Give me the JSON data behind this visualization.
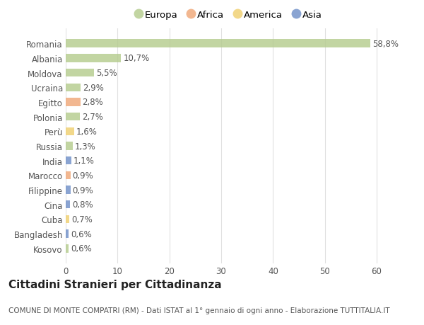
{
  "categories": [
    "Romania",
    "Albania",
    "Moldova",
    "Ucraina",
    "Egitto",
    "Polonia",
    "Perù",
    "Russia",
    "India",
    "Marocco",
    "Filippine",
    "Cina",
    "Cuba",
    "Bangladesh",
    "Kosovo"
  ],
  "values": [
    58.8,
    10.7,
    5.5,
    2.9,
    2.8,
    2.7,
    1.6,
    1.3,
    1.1,
    0.9,
    0.9,
    0.8,
    0.7,
    0.6,
    0.6
  ],
  "labels": [
    "58,8%",
    "10,7%",
    "5,5%",
    "2,9%",
    "2,8%",
    "2,7%",
    "1,6%",
    "1,3%",
    "1,1%",
    "0,9%",
    "0,9%",
    "0,8%",
    "0,7%",
    "0,6%",
    "0,6%"
  ],
  "continents": [
    "Europa",
    "Europa",
    "Europa",
    "Europa",
    "Africa",
    "Europa",
    "America",
    "Europa",
    "Asia",
    "Africa",
    "Asia",
    "Asia",
    "America",
    "Asia",
    "Europa"
  ],
  "continent_colors": {
    "Europa": "#b5cc8e",
    "Africa": "#f0a878",
    "America": "#f0d070",
    "Asia": "#7090c8"
  },
  "legend_entries": [
    "Europa",
    "Africa",
    "America",
    "Asia"
  ],
  "background_color": "#ffffff",
  "title": "Cittadini Stranieri per Cittadinanza",
  "subtitle": "COMUNE DI MONTE COMPATRI (RM) - Dati ISTAT al 1° gennaio di ogni anno - Elaborazione TUTTITALIA.IT",
  "xlim": [
    0,
    63
  ],
  "xticks": [
    0,
    10,
    20,
    30,
    40,
    50,
    60
  ],
  "grid_color": "#e0e0e0",
  "bar_height": 0.55,
  "label_fontsize": 8.5,
  "tick_fontsize": 8.5,
  "title_fontsize": 11,
  "subtitle_fontsize": 7.5
}
